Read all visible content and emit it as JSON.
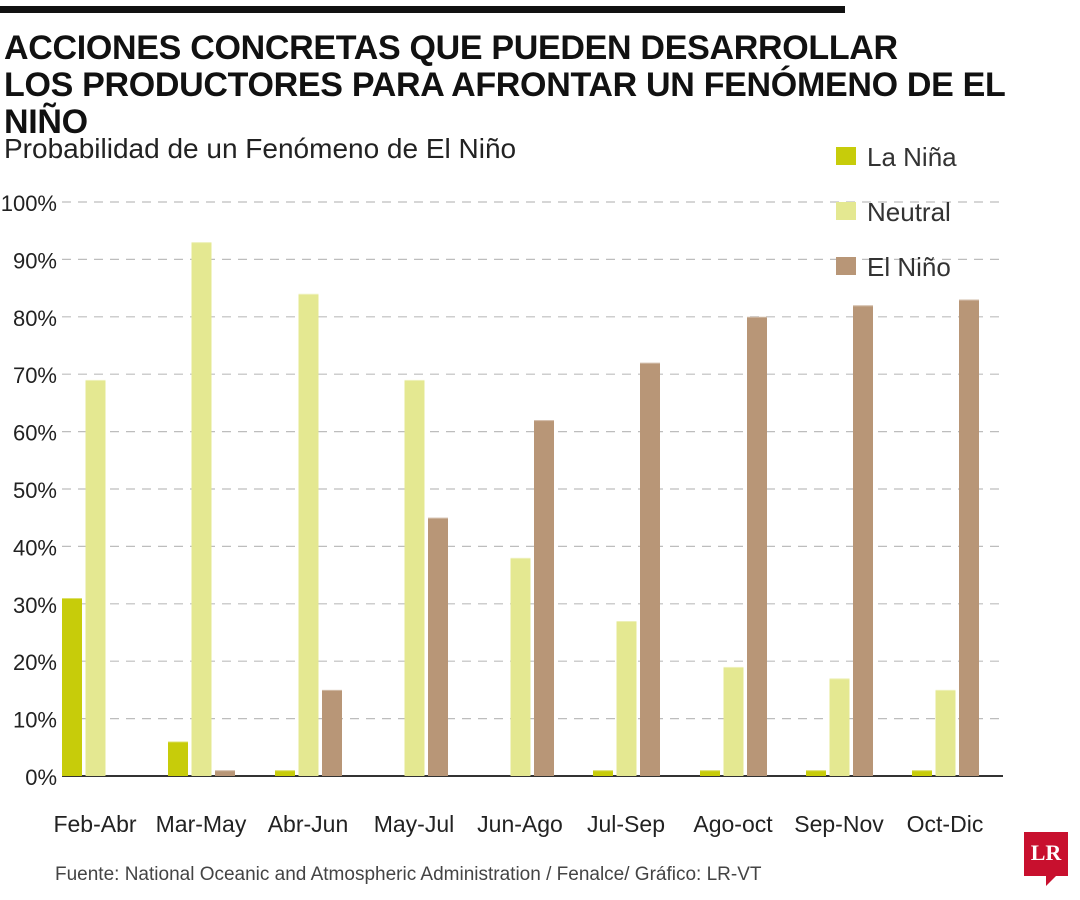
{
  "header": {
    "title_line1": "ACCIONES CONCRETAS QUE PUEDEN DESARROLLAR",
    "title_line2": "LOS PRODUCTORES PARA AFRONTAR UN FENÓMENO DE EL NIÑO"
  },
  "footer": {
    "source": "Fuente: National Oceanic and Atmospheric Administration / Fenalce/ Gráfico: LR-VT"
  },
  "logo": {
    "text": "LR"
  },
  "colors": {
    "la_nina": "#c7cc0a",
    "neutral": "#e4e891",
    "el_nino": "#b89677",
    "grid": "#bdbdbd",
    "axis": "#333333",
    "brand": "#c8102e"
  },
  "chart_data": {
    "type": "bar",
    "title": "Probabilidad de un Fenómeno de El Niño",
    "xlabel": "",
    "ylabel": "",
    "ylim": [
      0,
      100
    ],
    "yticks": [
      "0%",
      "10%",
      "20%",
      "30%",
      "40%",
      "50%",
      "60%",
      "70%",
      "80%",
      "90%",
      "100%"
    ],
    "grid": true,
    "legend_position": "top-right",
    "categories": [
      "Feb-Abr",
      "Mar-May",
      "Abr-Jun",
      "May-Jul",
      "Jun-Ago",
      "Jul-Sep",
      "Ago-oct",
      "Sep-Nov",
      "Oct-Dic"
    ],
    "series": [
      {
        "name": "La Niña",
        "key": "la_nina",
        "values": [
          31,
          6,
          1,
          0,
          0,
          1,
          1,
          1,
          1
        ]
      },
      {
        "name": "Neutral",
        "key": "neutral",
        "values": [
          69,
          93,
          84,
          69,
          38,
          27,
          19,
          17,
          15
        ]
      },
      {
        "name": "El Niño",
        "key": "el_nino",
        "values": [
          0,
          1,
          15,
          45,
          62,
          72,
          80,
          82,
          83
        ]
      }
    ]
  }
}
